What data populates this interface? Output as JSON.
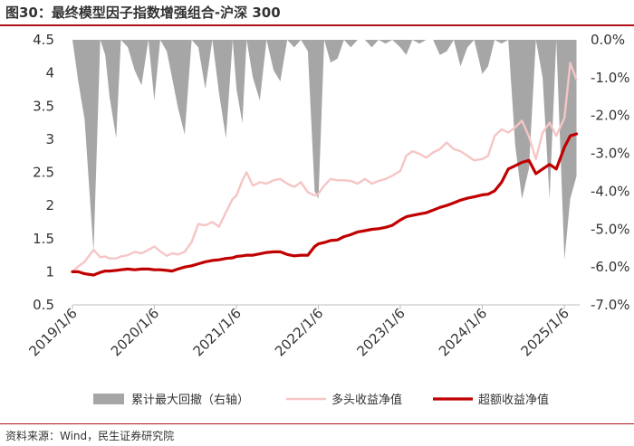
{
  "title": "图30：最终模型因子指数增强组合-沪深 300",
  "source": "资料来源：Wind，民生证券研究院",
  "colors": {
    "drawdown": "#a6a6a6",
    "long": "#f6c5c5",
    "excess": "#c00000",
    "accent": "#b0101a"
  },
  "chart_data": {
    "type": "line",
    "x_ticks": [
      "2019/1/6",
      "2020/1/6",
      "2021/1/6",
      "2022/1/6",
      "2023/1/6",
      "2024/1/6",
      "2025/1/6"
    ],
    "y_left": {
      "min": 0.5,
      "max": 4.5,
      "ticks": [
        "0.5",
        "1",
        "1.5",
        "2",
        "2.5",
        "3",
        "3.5",
        "4",
        "4.5"
      ]
    },
    "y_right": {
      "min": -7.0,
      "max": 0.0,
      "ticks": [
        "0.0%",
        "-1.0%",
        "-2.0%",
        "-3.0%",
        "-4.0%",
        "-5.0%",
        "-6.0%",
        "-7.0%"
      ]
    },
    "series": [
      {
        "name": "累计最大回撤（右轴）",
        "type": "area",
        "axis": "right",
        "x": [
          "2019/1/6",
          "2019/2/1",
          "2019/3/1",
          "2019/4/10",
          "2019/5/10",
          "2019/6/1",
          "2019/6/20",
          "2019/7/20",
          "2019/8/10",
          "2019/9/10",
          "2019/10/10",
          "2019/11/10",
          "2019/12/10",
          "2020/1/6",
          "2020/2/1",
          "2020/3/1",
          "2020/3/25",
          "2020/4/20",
          "2020/5/20",
          "2020/6/20",
          "2020/7/20",
          "2020/8/20",
          "2020/9/20",
          "2020/10/20",
          "2020/11/20",
          "2020/12/20",
          "2021/1/6",
          "2021/2/1",
          "2021/2/20",
          "2021/3/20",
          "2021/4/20",
          "2021/5/20",
          "2021/6/20",
          "2021/7/20",
          "2021/8/20",
          "2021/9/20",
          "2021/10/20",
          "2021/11/20",
          "2021/12/20",
          "2022/1/6",
          "2022/2/1",
          "2022/3/1",
          "2022/4/1",
          "2022/4/30",
          "2022/5/30",
          "2022/6/30",
          "2022/8/1",
          "2022/9/1",
          "2022/10/1",
          "2022/11/1",
          "2022/12/1",
          "2023/1/6",
          "2023/2/1",
          "2023/3/1",
          "2023/4/1",
          "2023/5/1",
          "2023/6/1",
          "2023/7/1",
          "2023/8/1",
          "2023/9/1",
          "2023/10/1",
          "2023/11/1",
          "2023/12/1",
          "2024/1/6",
          "2024/2/1",
          "2024/3/1",
          "2024/4/1",
          "2024/5/1",
          "2024/6/1",
          "2024/7/1",
          "2024/8/1",
          "2024/9/1",
          "2024/10/1",
          "2024/11/1",
          "2024/12/1",
          "2025/1/6",
          "2025/2/1",
          "2025/3/1"
        ],
        "values": [
          0,
          -1.1,
          -2.1,
          -5.6,
          0,
          -0.4,
          -1.5,
          -2.6,
          0,
          -0.2,
          -0.8,
          -1.2,
          0,
          -1.6,
          0,
          -0.3,
          -1.0,
          -1.8,
          -2.5,
          0,
          -0.2,
          -1.3,
          0,
          -1.4,
          -2.6,
          0,
          -1.3,
          -2.2,
          0,
          -1.0,
          -1.6,
          0,
          -0.8,
          -1.1,
          0,
          -0.2,
          0,
          -0.3,
          -4.0,
          -4.2,
          0,
          -0.6,
          -0.5,
          0,
          -0.2,
          0,
          0,
          -0.2,
          0,
          -0.1,
          0,
          -0.2,
          -0.4,
          0,
          -0.1,
          0,
          0,
          -0.4,
          -0.3,
          0,
          -0.7,
          -0.2,
          0,
          -0.9,
          -0.7,
          0,
          -0.1,
          0,
          -2.8,
          -4.2,
          -3.4,
          0,
          -1.0,
          -4.2,
          0,
          -5.8,
          -4.2,
          -3.6
        ]
      },
      {
        "name": "多头收益净值",
        "type": "line",
        "axis": "left",
        "x": [
          "2019/1/6",
          "2019/2/1",
          "2019/3/1",
          "2019/4/10",
          "2019/5/10",
          "2019/6/1",
          "2019/6/20",
          "2019/7/20",
          "2019/8/10",
          "2019/9/10",
          "2019/10/10",
          "2019/11/10",
          "2019/12/10",
          "2020/1/6",
          "2020/2/1",
          "2020/3/1",
          "2020/3/25",
          "2020/4/20",
          "2020/5/20",
          "2020/6/20",
          "2020/7/20",
          "2020/8/20",
          "2020/9/20",
          "2020/10/20",
          "2020/11/20",
          "2020/12/20",
          "2021/1/6",
          "2021/2/1",
          "2021/2/20",
          "2021/3/20",
          "2021/4/20",
          "2021/5/20",
          "2021/6/20",
          "2021/7/20",
          "2021/8/20",
          "2021/9/20",
          "2021/10/20",
          "2021/11/20",
          "2021/12/20",
          "2022/1/6",
          "2022/2/1",
          "2022/3/1",
          "2022/4/1",
          "2022/4/30",
          "2022/5/30",
          "2022/6/30",
          "2022/8/1",
          "2022/9/1",
          "2022/10/1",
          "2022/11/1",
          "2022/12/1",
          "2023/1/6",
          "2023/2/1",
          "2023/3/1",
          "2023/4/1",
          "2023/5/1",
          "2023/6/1",
          "2023/7/1",
          "2023/8/1",
          "2023/9/1",
          "2023/10/1",
          "2023/11/1",
          "2023/12/1",
          "2024/1/6",
          "2024/2/1",
          "2024/3/1",
          "2024/4/1",
          "2024/5/1",
          "2024/6/1",
          "2024/7/1",
          "2024/8/1",
          "2024/9/1",
          "2024/10/1",
          "2024/11/1",
          "2024/12/1",
          "2025/1/6",
          "2025/2/1",
          "2025/3/1"
        ],
        "values": [
          1.0,
          1.08,
          1.15,
          1.33,
          1.22,
          1.23,
          1.2,
          1.2,
          1.23,
          1.25,
          1.3,
          1.28,
          1.33,
          1.38,
          1.31,
          1.24,
          1.28,
          1.26,
          1.3,
          1.45,
          1.72,
          1.7,
          1.75,
          1.68,
          1.9,
          2.1,
          2.15,
          2.38,
          2.5,
          2.3,
          2.35,
          2.33,
          2.38,
          2.4,
          2.33,
          2.28,
          2.35,
          2.2,
          2.15,
          2.18,
          2.3,
          2.4,
          2.38,
          2.38,
          2.37,
          2.33,
          2.4,
          2.33,
          2.37,
          2.4,
          2.45,
          2.52,
          2.75,
          2.82,
          2.78,
          2.72,
          2.8,
          2.85,
          2.95,
          2.85,
          2.82,
          2.75,
          2.68,
          2.7,
          2.75,
          3.05,
          3.15,
          3.1,
          3.18,
          3.28,
          3.04,
          2.7,
          3.1,
          3.25,
          3.05,
          3.32,
          4.15,
          3.9
        ]
      },
      {
        "name": "超额收益净值",
        "type": "line",
        "axis": "left",
        "x": [
          "2019/1/6",
          "2019/2/1",
          "2019/3/1",
          "2019/4/10",
          "2019/5/10",
          "2019/6/1",
          "2019/6/20",
          "2019/7/20",
          "2019/8/10",
          "2019/9/10",
          "2019/10/10",
          "2019/11/10",
          "2019/12/10",
          "2020/1/6",
          "2020/2/1",
          "2020/3/1",
          "2020/3/25",
          "2020/4/20",
          "2020/5/20",
          "2020/6/20",
          "2020/7/20",
          "2020/8/20",
          "2020/9/20",
          "2020/10/20",
          "2020/11/20",
          "2020/12/20",
          "2021/1/6",
          "2021/2/1",
          "2021/2/20",
          "2021/3/20",
          "2021/4/20",
          "2021/5/20",
          "2021/6/20",
          "2021/7/20",
          "2021/8/20",
          "2021/9/20",
          "2021/10/20",
          "2021/11/20",
          "2021/12/20",
          "2022/1/6",
          "2022/2/1",
          "2022/3/1",
          "2022/4/1",
          "2022/4/30",
          "2022/5/30",
          "2022/6/30",
          "2022/8/1",
          "2022/9/1",
          "2022/10/1",
          "2022/11/1",
          "2022/12/1",
          "2023/1/6",
          "2023/2/1",
          "2023/3/1",
          "2023/4/1",
          "2023/5/1",
          "2023/6/1",
          "2023/7/1",
          "2023/8/1",
          "2023/9/1",
          "2023/10/1",
          "2023/11/1",
          "2023/12/1",
          "2024/1/6",
          "2024/2/1",
          "2024/3/1",
          "2024/4/1",
          "2024/5/1",
          "2024/6/1",
          "2024/7/1",
          "2024/8/1",
          "2024/9/1",
          "2024/10/1",
          "2024/11/1",
          "2024/12/1",
          "2025/1/6",
          "2025/2/1",
          "2025/3/1"
        ],
        "values": [
          1.0,
          1.0,
          0.97,
          0.95,
          0.99,
          1.01,
          1.01,
          1.02,
          1.03,
          1.04,
          1.03,
          1.04,
          1.04,
          1.03,
          1.03,
          1.02,
          1.01,
          1.04,
          1.07,
          1.09,
          1.12,
          1.15,
          1.17,
          1.18,
          1.2,
          1.21,
          1.23,
          1.24,
          1.25,
          1.25,
          1.27,
          1.29,
          1.3,
          1.3,
          1.26,
          1.24,
          1.25,
          1.25,
          1.38,
          1.42,
          1.44,
          1.47,
          1.48,
          1.53,
          1.56,
          1.6,
          1.62,
          1.64,
          1.65,
          1.67,
          1.7,
          1.78,
          1.83,
          1.85,
          1.87,
          1.89,
          1.93,
          1.97,
          2.0,
          2.04,
          2.08,
          2.11,
          2.13,
          2.16,
          2.17,
          2.22,
          2.35,
          2.55,
          2.6,
          2.65,
          2.68,
          2.48,
          2.55,
          2.62,
          2.55,
          2.88,
          3.05,
          3.08
        ]
      }
    ],
    "legend": [
      {
        "name": "累计最大回撤（右轴）",
        "style": "area"
      },
      {
        "name": "多头收益净值",
        "style": "line"
      },
      {
        "name": "超额收益净值",
        "style": "line"
      }
    ],
    "legend_position": "bottom"
  }
}
